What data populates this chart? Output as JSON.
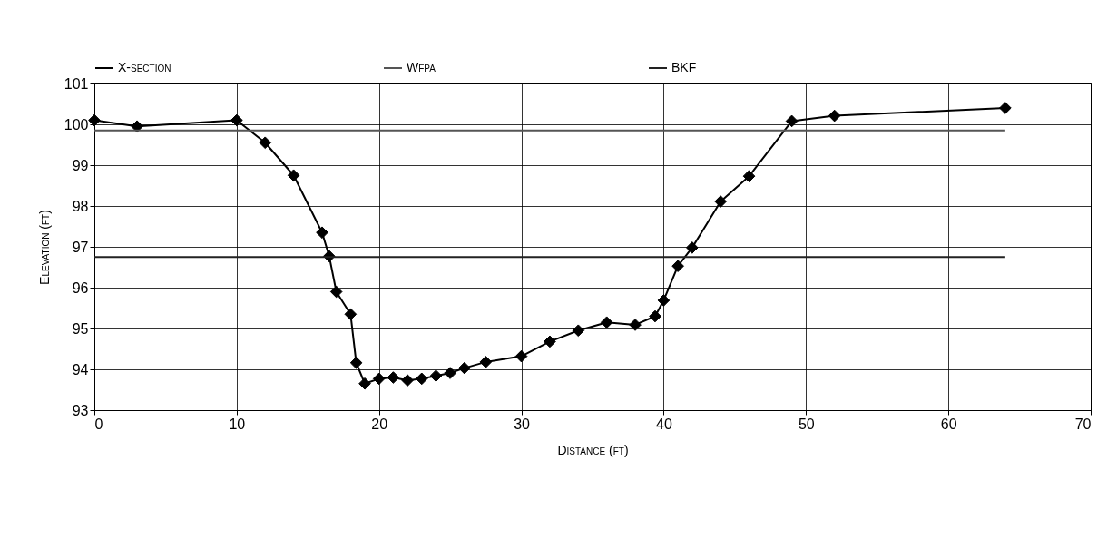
{
  "chart_data": {
    "type": "line",
    "xlabel": "Distance (ft)",
    "ylabel": "Elevation (ft)",
    "xlim": [
      0,
      70
    ],
    "xticks": [
      0,
      10,
      20,
      30,
      40,
      50,
      60,
      70
    ],
    "ylim": [
      93,
      101
    ],
    "yticks": [
      93,
      94,
      95,
      96,
      97,
      98,
      99,
      100,
      101
    ],
    "grid": true,
    "legend": "top",
    "series": [
      {
        "name": "X-section",
        "color": "#000000",
        "marker": "diamond",
        "x": [
          0,
          3,
          10,
          12,
          14,
          16,
          16.5,
          17,
          18,
          18.4,
          19,
          20,
          21,
          22,
          23,
          24,
          25,
          26,
          27.5,
          30,
          32,
          34,
          36,
          38,
          39.4,
          40,
          41,
          42,
          44,
          46,
          49,
          52,
          64
        ],
        "values": [
          100.1,
          99.95,
          100.1,
          99.55,
          98.75,
          97.35,
          96.77,
          95.9,
          95.35,
          94.16,
          93.65,
          93.77,
          93.8,
          93.73,
          93.77,
          93.84,
          93.91,
          94.03,
          94.18,
          94.32,
          94.68,
          94.95,
          95.15,
          95.09,
          95.3,
          95.69,
          96.53,
          96.98,
          98.11,
          98.73,
          100.08,
          100.21,
          100.4
        ]
      },
      {
        "name": "Wfpa",
        "color": "#555555",
        "marker": "none",
        "x": [
          0,
          64
        ],
        "values": [
          99.85,
          99.85
        ]
      },
      {
        "name": "BKF",
        "color": "#222222",
        "marker": "none",
        "x": [
          0,
          64
        ],
        "values": [
          96.75,
          96.75
        ]
      }
    ]
  }
}
